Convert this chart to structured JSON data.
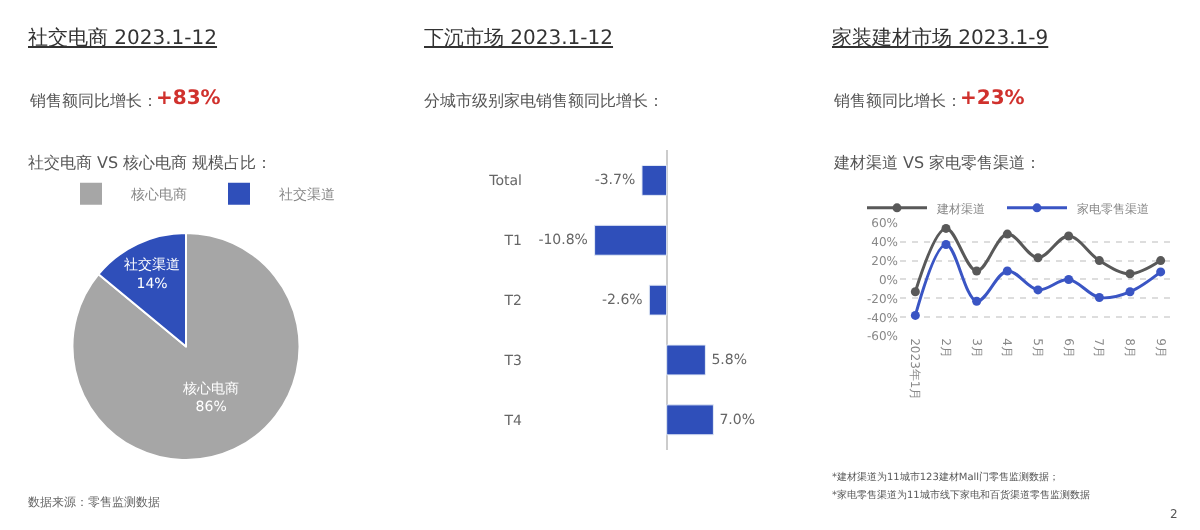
{
  "chart_data": [
    {
      "type": "pie",
      "title": "社交电商 2023.1-12",
      "annotations": [
        "销售额同比增长：",
        "+83%",
        "社交电商 VS 核心电商 规模占比：",
        "数据来源：零售监测数据"
      ],
      "categories": [
        "核心电商",
        "社交渠道"
      ],
      "values": [
        86,
        14
      ],
      "colors": [
        "#a6a6a6",
        "#2f4fba"
      ],
      "value_labels": [
        "86%",
        "14%"
      ],
      "legend": "top"
    },
    {
      "type": "bar",
      "orientation": "horizontal",
      "title": "下沉市场 2023.1-12",
      "annotations": [
        "分城市级别家电销售额同比增长："
      ],
      "categories": [
        "Total",
        "T1",
        "T2",
        "T3",
        "T4"
      ],
      "values": [
        -3.7,
        -10.8,
        -2.6,
        5.8,
        7.0
      ],
      "color": "#2f4fba",
      "value_labels": [
        "-3.7%",
        "-10.8%",
        "-2.6%",
        "5.8%",
        "7.0%"
      ]
    },
    {
      "type": "line",
      "title": "家装建材市场 2023.1-9",
      "annotations": [
        "销售额同比增长：",
        "+23%",
        "建材渠道 VS 家电零售渠道：",
        "*建材渠道为11城市123建材Mall门零售监测数据；",
        "*家电零售渠道为11城市线下家电和百货渠道零售监测数据",
        "2"
      ],
      "categories": [
        "2023年1月",
        "2月",
        "3月",
        "4月",
        "5月",
        "6月",
        "7月",
        "8月",
        "9月"
      ],
      "series": [
        {
          "name": "建材渠道",
          "color": "#595959",
          "values": [
            -13,
            54,
            9,
            48,
            23,
            46,
            20,
            6,
            20
          ]
        },
        {
          "name": "家电零售渠道",
          "color": "#3a55c4",
          "values": [
            -38,
            37,
            -23,
            9,
            -11,
            0,
            -19,
            -13,
            8
          ]
        }
      ],
      "ylim": [
        -60,
        60
      ],
      "yticks": [
        {
          "value": -60,
          "label": "-60%"
        },
        {
          "value": -40,
          "label": "-40%"
        },
        {
          "value": -20,
          "label": "-20%"
        },
        {
          "value": 0,
          "label": "0%"
        },
        {
          "value": 20,
          "label": "20%"
        },
        {
          "value": 40,
          "label": "40%"
        },
        {
          "value": 60,
          "label": "60%"
        }
      ],
      "grid": "y",
      "legend": "top",
      "marker": "circle",
      "line_style": "solid"
    }
  ]
}
